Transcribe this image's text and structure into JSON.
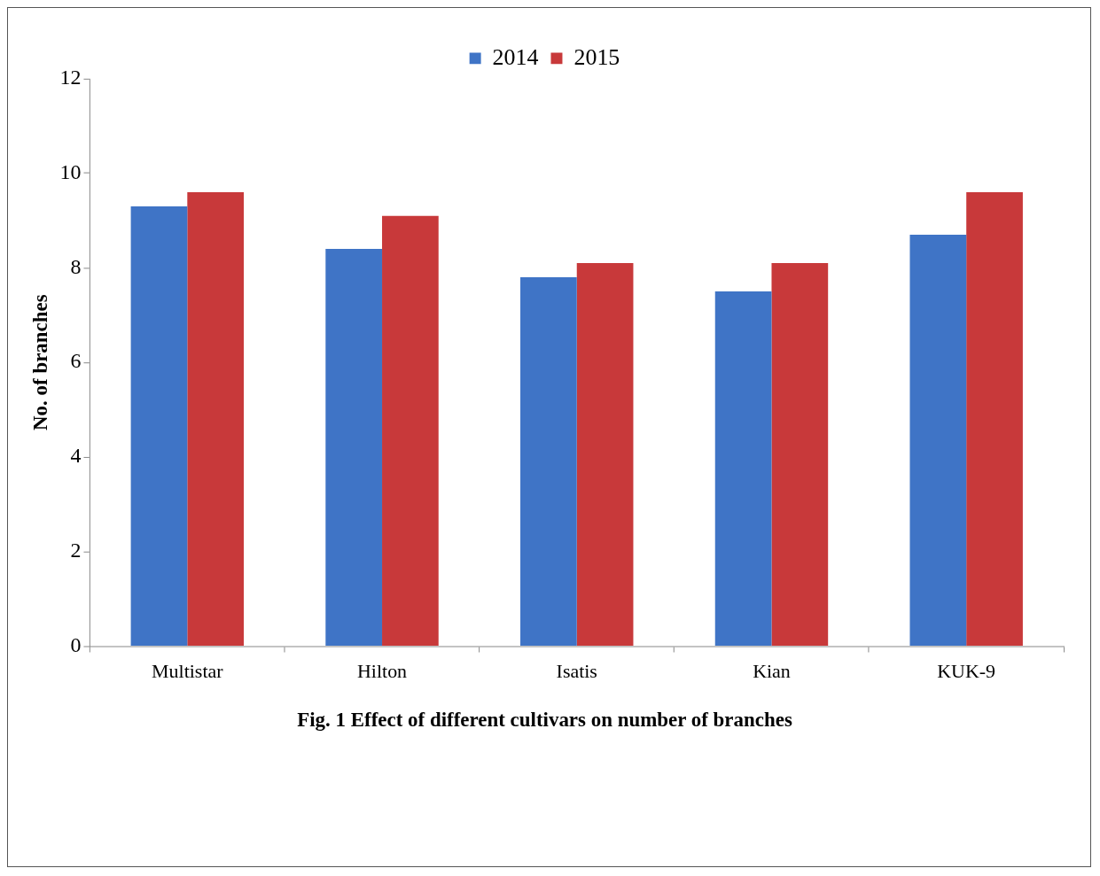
{
  "chart_data": {
    "type": "bar",
    "title": "Fig. 1 Effect of different cultivars on number of branches",
    "ylabel": "No. of branches",
    "categories": [
      "Multistar",
      "Hilton",
      "Isatis",
      "Kian",
      "KUK-9"
    ],
    "series": [
      {
        "name": "2014",
        "color": "#3f74c6",
        "values": [
          9.3,
          8.4,
          7.8,
          7.5,
          8.7
        ]
      },
      {
        "name": "2015",
        "color": "#c8393a",
        "values": [
          9.6,
          9.1,
          8.1,
          8.1,
          9.6
        ]
      }
    ],
    "ylim": [
      0,
      12
    ],
    "yticks": [
      0,
      2,
      4,
      6,
      8,
      10,
      12
    ],
    "grid": false,
    "legend": "top"
  }
}
